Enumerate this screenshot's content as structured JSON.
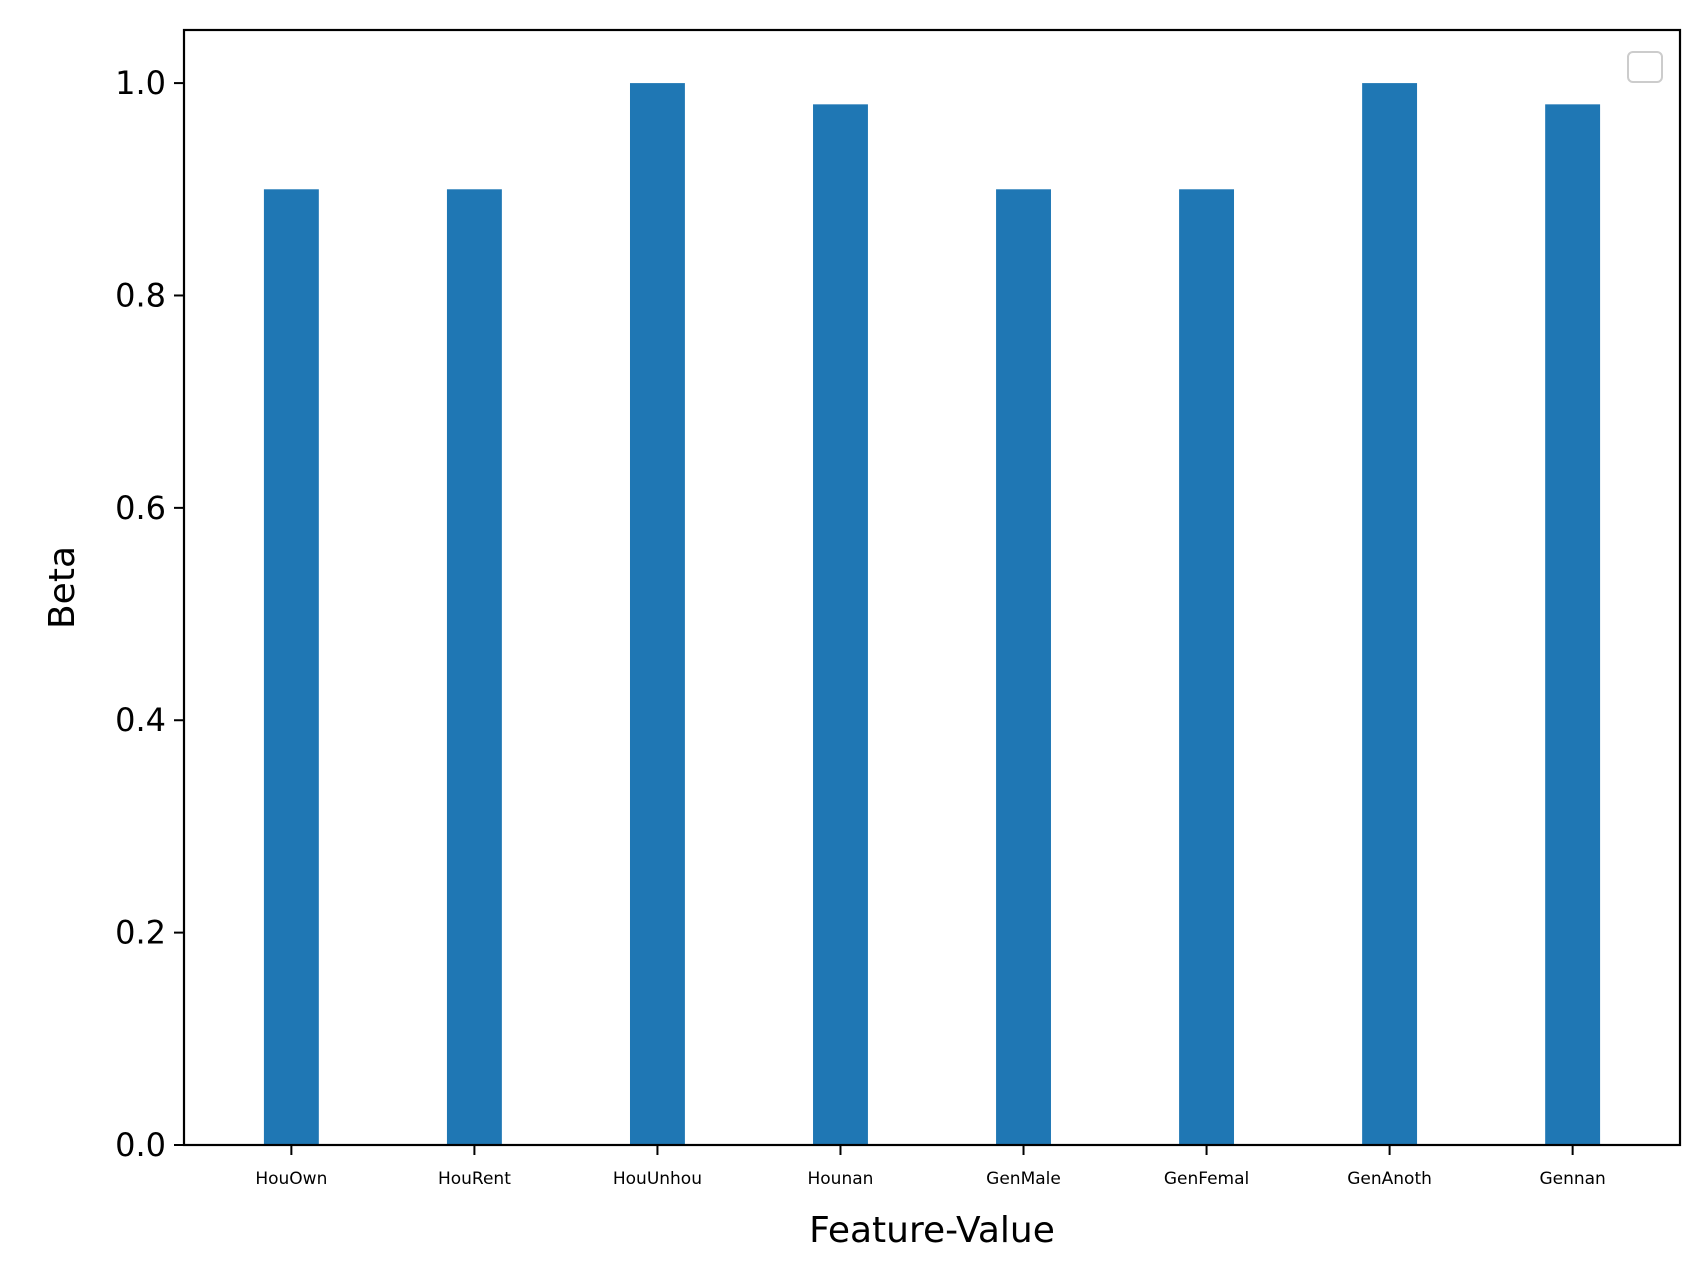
{
  "chart_data": {
    "type": "bar",
    "categories": [
      "HouOwn",
      "HouRent",
      "HouUnhou",
      "Hounan",
      "GenMale",
      "GenFemal",
      "GenAnoth",
      "Gennan"
    ],
    "values": [
      0.9,
      0.9,
      1.0,
      0.98,
      0.9,
      0.9,
      1.0,
      0.98
    ],
    "xlabel": "Feature-Value",
    "ylabel": "Beta",
    "ylim": [
      0,
      1.05
    ],
    "yticks": [
      0.0,
      0.2,
      0.4,
      0.6,
      0.8,
      1.0
    ],
    "ytick_labels": [
      "0.0",
      "0.2",
      "0.4",
      "0.6",
      "0.8",
      "1.0"
    ],
    "bar_color": "#1f77b4",
    "grid": false,
    "legend": {
      "placement": "top-right",
      "entries": []
    }
  }
}
